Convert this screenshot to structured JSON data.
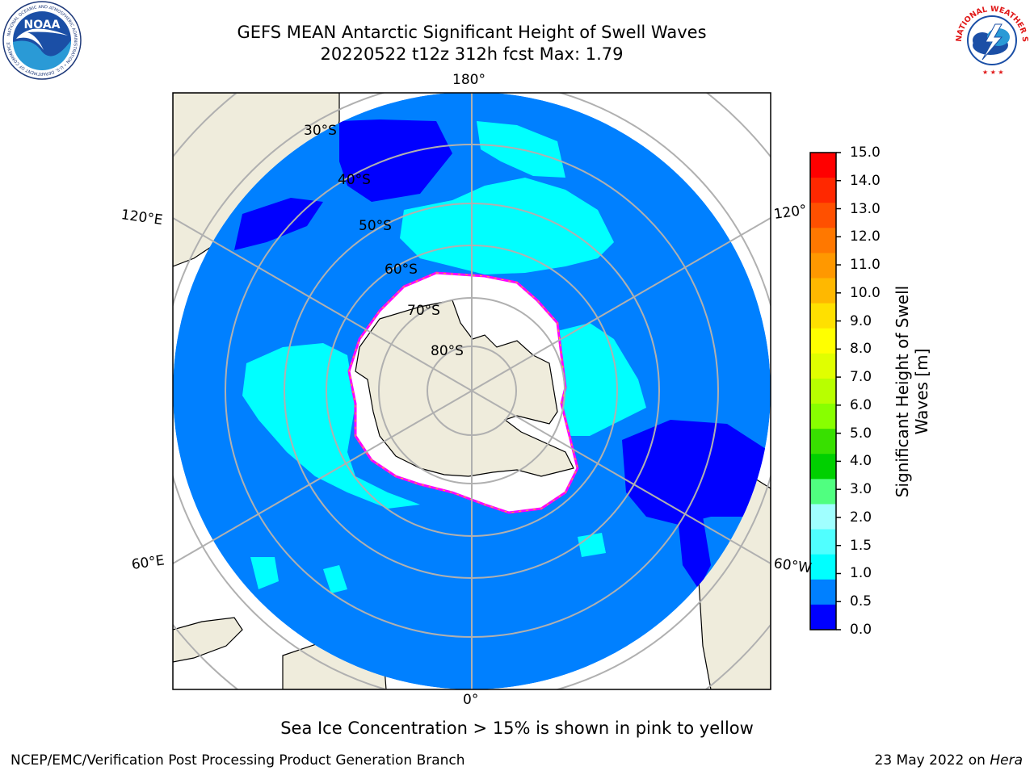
{
  "header": {
    "title_line1": "GEFS MEAN Antarctic Significant Height of Swell Waves",
    "title_line2": "20220522 t12z 312h fcst   Max: 1.79"
  },
  "logos": {
    "left": "NOAA",
    "right": "NATIONAL WEATHER SERVICE",
    "noaa_ring_text": "NATIONAL OCEANIC AND ATMOSPHERIC ADMINISTRATION • U.S. DEPARTMENT OF COMMERCE"
  },
  "map": {
    "projection": "south-polar-stereographic",
    "longitude_labels": {
      "top": "180°",
      "bottom": "0°",
      "upper_left": "120°E",
      "lower_left": "60°E",
      "upper_right": "120°",
      "lower_right": "60°W"
    },
    "latitude_labels": [
      "30°S",
      "40°S",
      "50°S",
      "60°S",
      "70°S",
      "80°S"
    ],
    "colors": {
      "land": "#efecdc",
      "ocean_low": "#0080ff",
      "ocean_very_low": "#0000ff",
      "swell_cyan": "#00ffff",
      "sea_ice": "#ffffff",
      "ice_edge": "#ff00ff",
      "grid": "#b0b0b0"
    }
  },
  "colorbar": {
    "label": "Significant Height of Swell Waves [m]",
    "ticks": [
      "15.0",
      "14.0",
      "13.0",
      "12.0",
      "11.0",
      "10.0",
      "9.0",
      "8.0",
      "7.0",
      "6.0",
      "5.0",
      "4.0",
      "3.0",
      "2.0",
      "1.5",
      "1.0",
      "0.5",
      "0.0"
    ],
    "colors_top_to_bottom": [
      "#ff0000",
      "#ff2800",
      "#ff5000",
      "#ff7800",
      "#ff9800",
      "#ffb800",
      "#ffe000",
      "#ffff00",
      "#e0ff00",
      "#b8ff00",
      "#88ff00",
      "#38e000",
      "#00d000",
      "#50ff80",
      "#a0ffff",
      "#50ffff",
      "#00ffff",
      "#0080ff",
      "#0000ff"
    ]
  },
  "note": "Sea Ice Concentration > 15% is shown in pink to yellow",
  "footer": {
    "left": "NCEP/EMC/Verification Post Processing Product Generation Branch",
    "right_date": "23 May 2022 on ",
    "right_host": "Hera"
  }
}
